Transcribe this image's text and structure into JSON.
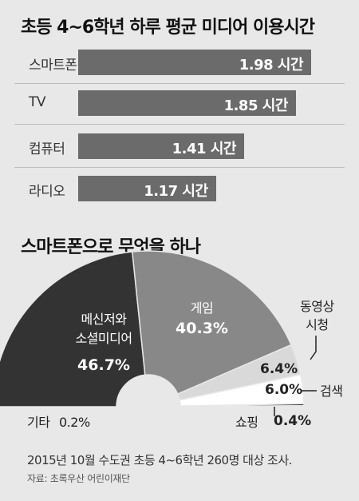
{
  "chart_data": [
    {
      "type": "bar",
      "orientation": "horizontal",
      "title": "초등 4~6학년 하루 평균 미디어 이용시간",
      "categories": [
        "스마트폰",
        "TV",
        "컴퓨터",
        "라디오"
      ],
      "values": [
        1.98,
        1.85,
        1.41,
        1.17
      ],
      "value_labels": [
        "1.98 시간",
        "1.85 시간",
        "1.41 시간",
        "1.17 시간"
      ],
      "bar_color": "#6b6b6b"
    },
    {
      "type": "pie",
      "shape": "semicircle",
      "title": "스마트폰으로 무엇을 하나",
      "segments": [
        {
          "name": "메신저와 소셜미디어",
          "name_lines": [
            "메신저와",
            "소셜미디어"
          ],
          "value": 46.7,
          "value_label": "46.7%",
          "color": "#333333"
        },
        {
          "name": "게임",
          "name_lines": [
            "게임"
          ],
          "value": 40.3,
          "value_label": "40.3%",
          "color": "#888888"
        },
        {
          "name": "동영상 시청",
          "name_lines": [
            "동영상",
            "시청"
          ],
          "value": 6.4,
          "value_label": "6.4%",
          "color": "#d9d9d9"
        },
        {
          "name": "검색",
          "name_lines": [
            "검색"
          ],
          "value": 6.0,
          "value_label": "6.0%",
          "color": "#ffffff"
        },
        {
          "name": "쇼핑",
          "name_lines": [
            "쇼핑"
          ],
          "value": 0.4,
          "value_label": "0.4%",
          "color": "#111111"
        },
        {
          "name": "기타",
          "name_lines": [
            "기타"
          ],
          "value": 0.2,
          "value_label": "0.2%",
          "color": "#111111"
        }
      ]
    }
  ],
  "footer": {
    "note": "2015년 10월 수도권 초등 4~6학년 260명 대상 조사.",
    "source": "자료: 초록우산 어린이재단"
  }
}
